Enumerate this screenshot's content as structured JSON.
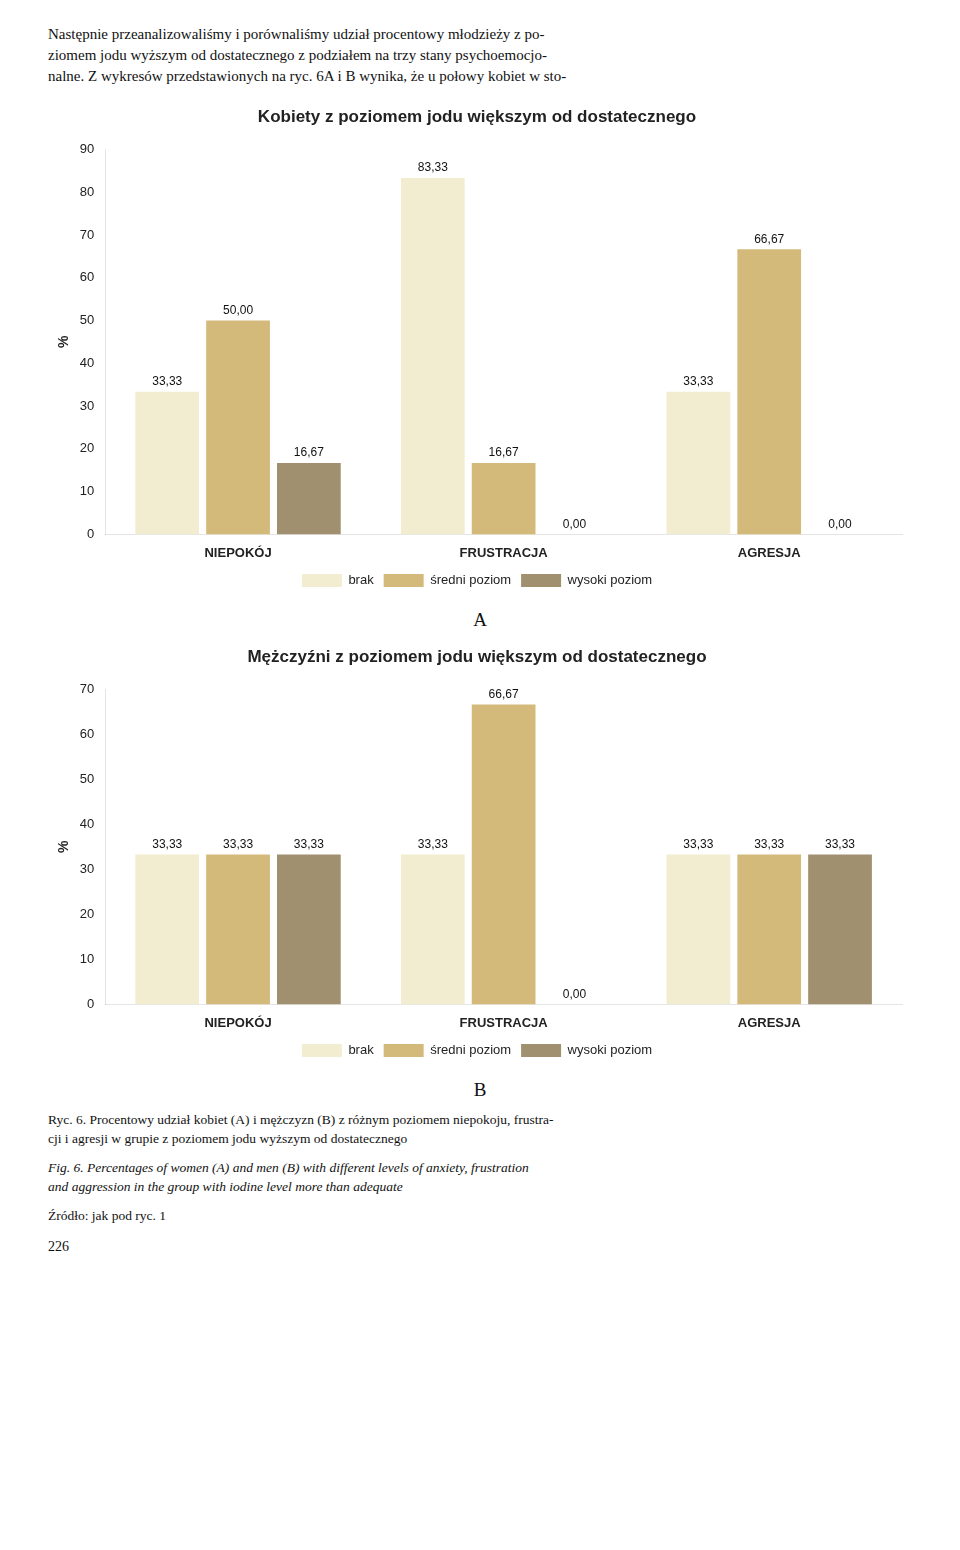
{
  "chart_data": [
    {
      "type": "bar",
      "title": "Kobiety z poziomem jodu większym od dostatecznego",
      "ylabel": "%",
      "categories": [
        "NIEPOKÓJ",
        "FRUSTRACJA",
        "AGRESJA"
      ],
      "series": [
        {
          "name": "brak",
          "color": "#F2EDD0",
          "values": [
            33.33,
            83.33,
            33.33
          ],
          "value_labels": [
            "33,33",
            "83,33",
            "33,33"
          ]
        },
        {
          "name": "średni poziom",
          "color": "#D4BA7A",
          "values": [
            50.0,
            16.67,
            66.67
          ],
          "value_labels": [
            "50,00",
            "16,67",
            "66,67"
          ]
        },
        {
          "name": "wysoki poziom",
          "color": "#A09070",
          "values": [
            16.67,
            0.0,
            0.0
          ],
          "value_labels": [
            "16,67",
            "0,00",
            "0,00"
          ]
        }
      ],
      "ylim": [
        0,
        90
      ],
      "yticks": [
        0,
        10,
        20,
        30,
        40,
        50,
        60,
        70,
        80,
        90
      ],
      "grid": false,
      "legend": "bottom",
      "data_labels": true,
      "annotations": [
        "Następnie przeanalizowaliśmy i porównaliśmy udział procentowy młodzieży z po-\nziomem jodu wyższym od dostatecznego z podziałem na trzy stany psychoemocjo-\nnalne. Z wykresów przedstawionych na ryc. 6A i B wynika, że u połowy kobiet w sto-",
        "A"
      ]
    },
    {
      "type": "bar",
      "title": "Mężczyźni z poziomem jodu większym od dostatecznego",
      "ylabel": "%",
      "categories": [
        "NIEPOKÓJ",
        "FRUSTRACJA",
        "AGRESJA"
      ],
      "series": [
        {
          "name": "brak",
          "color": "#F2EDD0",
          "values": [
            33.33,
            33.33,
            33.33
          ],
          "value_labels": [
            "33,33",
            "33,33",
            "33,33"
          ]
        },
        {
          "name": "średni poziom",
          "color": "#D4BA7A",
          "values": [
            33.33,
            66.67,
            33.33
          ],
          "value_labels": [
            "33,33",
            "66,67",
            "33,33"
          ]
        },
        {
          "name": "wysoki poziom",
          "color": "#A09070",
          "values": [
            33.33,
            0.0,
            33.33
          ],
          "value_labels": [
            "33,33",
            "0,00",
            "33,33"
          ]
        }
      ],
      "ylim": [
        0,
        70
      ],
      "yticks": [
        0,
        10,
        20,
        30,
        40,
        50,
        60,
        70
      ],
      "grid": false,
      "legend": "bottom",
      "data_labels": true,
      "annotations": [
        "B",
        "Ryc. 6. Procentowy udział kobiet (A) i mężczyzn (B) z różnym poziomem niepokoju, frustra-\ncji i agresji w grupie z poziomem jodu wyższym od dostatecznego",
        "Fig. 6. Percentages of women (A) and men (B) with different levels of anxiety, frustration\nand aggression in the group with iodine level more than adequate",
        "Źródło: jak pod ryc. 1",
        "226"
      ]
    }
  ]
}
